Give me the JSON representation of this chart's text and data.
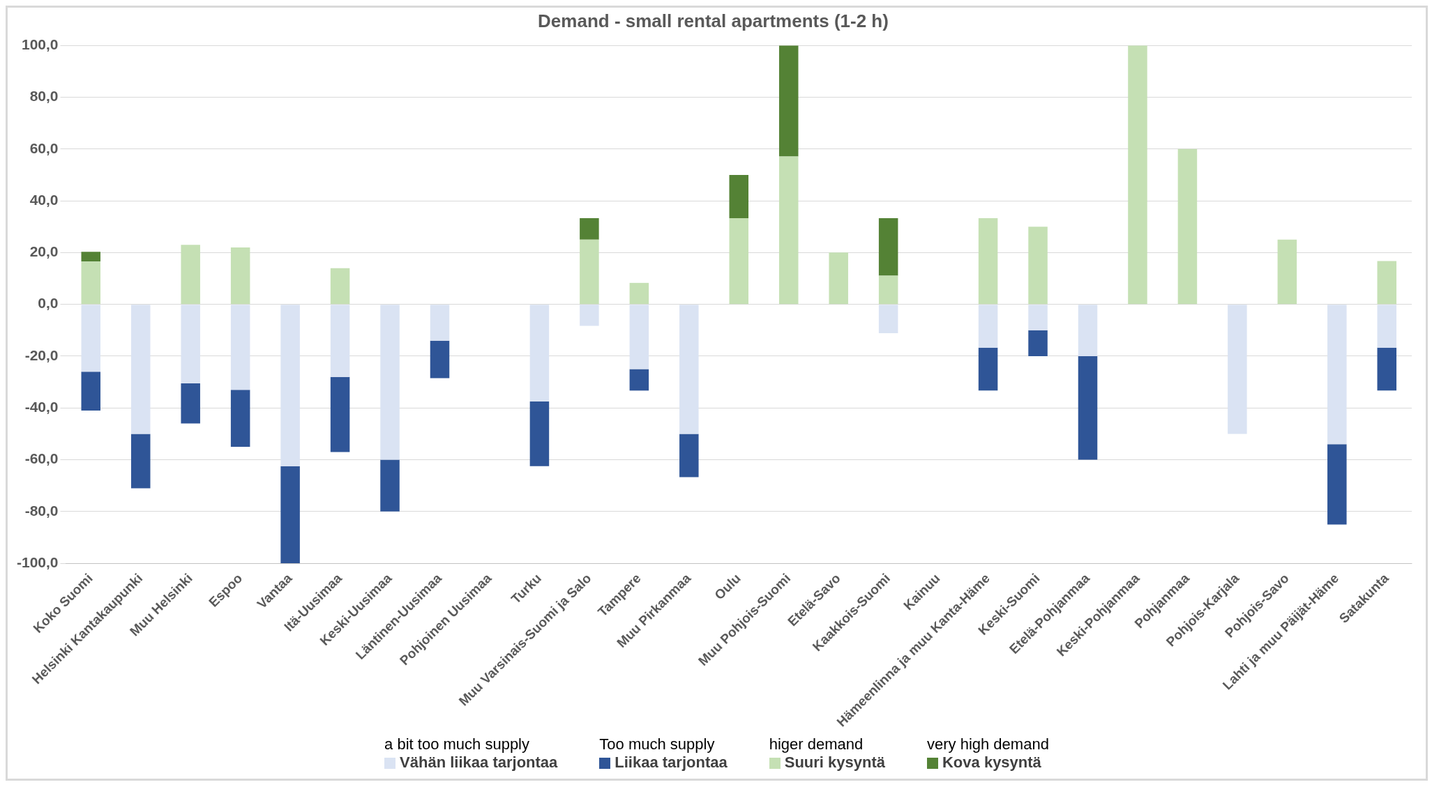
{
  "chart_data": {
    "type": "bar",
    "title": "Demand - small rental apartments (1-2 h)",
    "stacked": true,
    "categories": [
      "Koko Suomi",
      "Helsinki Kantakaupunki",
      "Muu Helsinki",
      "Espoo",
      "Vantaa",
      "Itä-Uusimaa",
      "Keski-Uusimaa",
      "Läntinen-Uusimaa",
      "Pohjoinen Uusimaa",
      "Turku",
      "Muu Varsinais-Suomi ja Salo",
      "Tampere",
      "Muu Pirkanmaa",
      "Oulu",
      "Muu Pohjois-Suomi",
      "Etelä-Savo",
      "Kaakkois-Suomi",
      "Kainuu",
      "Hämeenlinna ja muu Kanta-Häme",
      "Keski-Suomi",
      "Etelä-Pohjanmaa",
      "Keski-Pohjanmaa",
      "Pohjanmaa",
      "Pohjois-Karjala",
      "Pohjois-Savo",
      "Lahti ja muu Päijät-Häme",
      "Satakunta"
    ],
    "series": [
      {
        "name": "Vähän liikaa tarjontaa",
        "color": "#dae3f3",
        "values": [
          -26,
          -50,
          -30.5,
          -33,
          -62.5,
          -28,
          -60,
          -14,
          null,
          -37.5,
          -8.3,
          -25,
          -50,
          null,
          null,
          null,
          -11.1,
          null,
          -16.7,
          -10,
          -20,
          null,
          null,
          -50,
          null,
          -54,
          -16.7
        ]
      },
      {
        "name": "Liikaa tarjontaa",
        "color": "#2f5597",
        "values": [
          -15,
          -21,
          -15.5,
          -22,
          -37.5,
          -29,
          -20,
          -14.5,
          null,
          -25,
          null,
          -8.3,
          -16.7,
          null,
          null,
          null,
          null,
          null,
          -16.6,
          -10,
          -40,
          null,
          null,
          null,
          null,
          -31,
          -16.6
        ]
      },
      {
        "name": "Suuri kysyntä",
        "color": "#c5e0b4",
        "values": [
          16.5,
          null,
          23,
          22,
          null,
          14,
          null,
          null,
          null,
          null,
          25,
          8.3,
          null,
          33.3,
          57.1,
          20,
          11.1,
          null,
          33.3,
          30,
          null,
          100,
          60,
          null,
          25,
          null,
          16.7
        ]
      },
      {
        "name": "Kova kysyntä",
        "color": "#548235",
        "values": [
          3.8,
          null,
          null,
          null,
          null,
          null,
          null,
          null,
          null,
          null,
          8.3,
          null,
          null,
          16.7,
          42.9,
          null,
          22.2,
          null,
          null,
          null,
          null,
          null,
          null,
          null,
          null,
          null,
          null
        ]
      }
    ],
    "ylim": [
      -100,
      100
    ],
    "yticks": [
      {
        "value": -100,
        "label": "-100,0"
      },
      {
        "value": -80,
        "label": "-80,0"
      },
      {
        "value": -60,
        "label": "-60,0"
      },
      {
        "value": -40,
        "label": "-40,0"
      },
      {
        "value": -20,
        "label": "-20,0"
      },
      {
        "value": 0,
        "label": "0,0"
      },
      {
        "value": 20,
        "label": "20,0"
      },
      {
        "value": 40,
        "label": "40,0"
      },
      {
        "value": 60,
        "label": "60,0"
      },
      {
        "value": 80,
        "label": "80,0"
      },
      {
        "value": 100,
        "label": "100,0"
      }
    ],
    "grid": "y",
    "legend": "bottom",
    "annotations": [
      "a bit too much supply",
      "Too much supply",
      "higer demand",
      "very high demand"
    ]
  }
}
